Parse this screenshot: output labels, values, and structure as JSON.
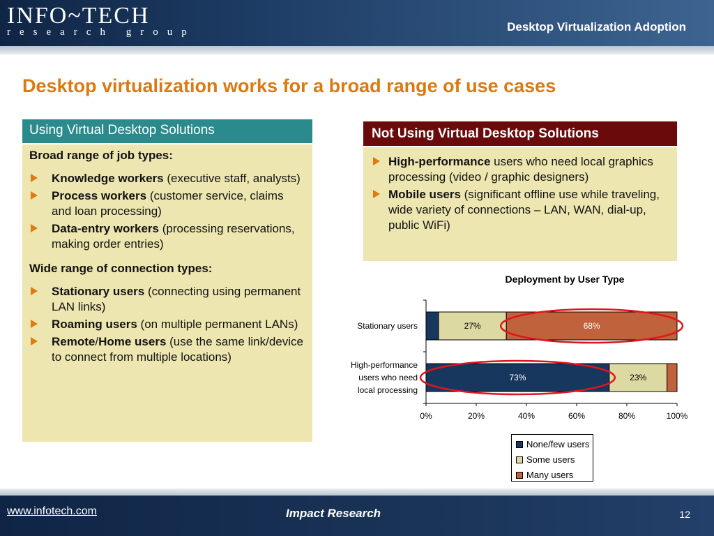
{
  "header": {
    "logo_top": "INFO~TECH",
    "logo_bottom": "research group",
    "title": "Desktop Virtualization Adoption"
  },
  "slide_title": "Desktop virtualization works for a broad range of use cases",
  "left_panel": {
    "heading": "Using Virtual Desktop Solutions",
    "job_types_heading": "Broad range of job types:",
    "job_types": [
      {
        "bold": "Knowledge workers",
        "rest": " (executive staff, analysts)"
      },
      {
        "bold": "Process workers",
        "rest": " (customer service, claims and loan processing)"
      },
      {
        "bold": "Data-entry workers",
        "rest": " (processing reservations, making order entries)"
      }
    ],
    "connection_heading": "Wide range of connection types:",
    "connection_types": [
      {
        "bold": "Stationary users",
        "rest": " (connecting using permanent LAN links)"
      },
      {
        "bold": "Roaming users",
        "rest": " (on multiple permanent LANs)"
      },
      {
        "bold": "Remote",
        "mid": "/",
        "bold2": "Home users",
        "rest": " (use the same link/device to connect from multiple locations)"
      }
    ]
  },
  "right_panel": {
    "heading": "Not Using Virtual Desktop Solutions",
    "items": [
      {
        "bold": "High-performance",
        "rest": " users who need local graphics processing (video / graphic designers)"
      },
      {
        "bold": "Mobile users",
        "rest": " (significant offline use while traveling, wide variety of connections – LAN, WAN, dial-up, public WiFi)"
      }
    ]
  },
  "chart_data": {
    "type": "bar",
    "orientation": "horizontal",
    "stacked": true,
    "title": "Deployment by User Type",
    "categories": [
      "Stationary users",
      "High-performance users who need local processing"
    ],
    "category_lines": [
      [
        "Stationary users"
      ],
      [
        "High-performance",
        "users who need",
        "local processing"
      ]
    ],
    "series": [
      {
        "name": "None/few users",
        "values": [
          5,
          73
        ],
        "color": "#17375e",
        "labels": [
          "",
          "73%"
        ]
      },
      {
        "name": "Some users",
        "values": [
          27,
          23
        ],
        "color": "#ddd9a3",
        "labels": [
          "27%",
          "23%"
        ]
      },
      {
        "name": "Many users",
        "values": [
          68,
          4
        ],
        "color": "#c0623b",
        "labels": [
          "68%",
          ""
        ]
      }
    ],
    "xlim": [
      0,
      100
    ],
    "x_ticks": [
      "0%",
      "20%",
      "40%",
      "60%",
      "80%",
      "100%"
    ],
    "legend_position": "bottom-right",
    "highlight_color": "#e0141e",
    "highlights": [
      {
        "category": "Stationary users",
        "series": "Many users"
      },
      {
        "category": "High-performance users who need local processing",
        "series": "None/few users"
      }
    ]
  },
  "footer": {
    "link": "www.infotech.com",
    "center": "Impact Research",
    "page": "12"
  }
}
